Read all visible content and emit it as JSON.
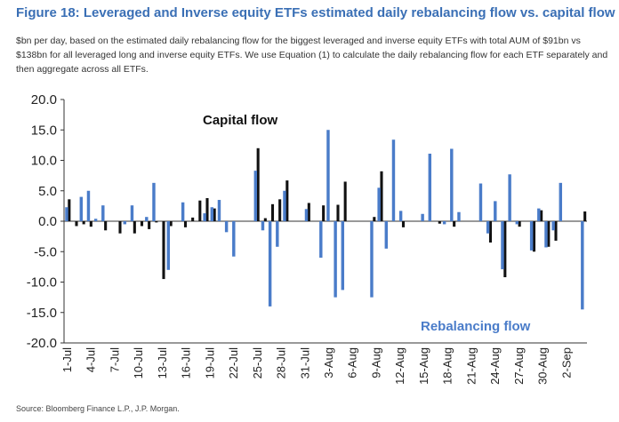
{
  "figure": {
    "title": "Figure 18: Leveraged and Inverse equity ETFs estimated daily rebalancing flow vs. capital flow",
    "description": "$bn per day, based on the estimated daily rebalancing flow for the biggest leveraged and inverse equity ETFs with total AUM of $91bn vs $138bn for all leveraged long and inverse equity ETFs. We use Equation (1) to calculate the daily rebalancing flow for each ETF separately and then aggregate across all ETFs.",
    "source": "Source: Bloomberg Finance L.P., J.P. Morgan."
  },
  "colors": {
    "rebalancing": "#4a7cc9",
    "capital": "#111111",
    "title": "#3a6fb5",
    "axis": "#333333"
  },
  "chart_data": {
    "type": "bar",
    "title": "",
    "xlabel": "",
    "ylabel": "",
    "ylim": [
      -20,
      20
    ],
    "yticks": [
      "20.0",
      "15.0",
      "10.0",
      "5.0",
      "0.0",
      "-5.0",
      "-10.0",
      "-15.0",
      "-20.0"
    ],
    "ytick_values": [
      20,
      15,
      10,
      5,
      0,
      -5,
      -10,
      -15,
      -20
    ],
    "xtick_labels": [
      "1-Jul",
      "4-Jul",
      "7-Jul",
      "10-Jul",
      "13-Jul",
      "16-Jul",
      "19-Jul",
      "22-Jul",
      "25-Jul",
      "28-Jul",
      "31-Jul",
      "3-Aug",
      "6-Aug",
      "9-Aug",
      "12-Aug",
      "15-Aug",
      "18-Aug",
      "21-Aug",
      "24-Aug",
      "27-Aug",
      "30-Aug",
      "2-Sep"
    ],
    "day_count": 65,
    "series": [
      {
        "name": "Rebalancing flow",
        "values": [
          2.3,
          0,
          4,
          5,
          0.4,
          2.6,
          0,
          0,
          -0.5,
          2.6,
          0,
          0.7,
          6.3,
          0,
          -8,
          0,
          3.1,
          0,
          0,
          1.3,
          2.3,
          3.5,
          -1.8,
          -5.8,
          0,
          0,
          8.3,
          -1.5,
          -14,
          -4.2,
          5,
          0,
          0,
          2,
          0,
          -6,
          15,
          -12.5,
          -11.3,
          0,
          0,
          0,
          -12.5,
          5.5,
          -4.5,
          13.4,
          1.7,
          0,
          0,
          1.2,
          11.1,
          0,
          -0.5,
          11.9,
          1.5,
          0,
          0,
          6.2,
          -2,
          3.3,
          -7.9,
          7.7,
          -0.5,
          0,
          -4.8,
          2.1,
          -4.3,
          -1.5,
          6.3,
          0,
          0,
          -14.5
        ],
        "axis_labels_note": "axis shows 72 slots; values indexed by slot"
      },
      {
        "name": "Capital flow",
        "values": [
          3.6,
          -0.8,
          -0.5,
          -0.9,
          0,
          -1.5,
          0,
          -2,
          0,
          -2,
          -0.8,
          -1.3,
          -0.2,
          -9.5,
          -0.8,
          0,
          -1,
          0.6,
          3.4,
          3.8,
          2.1,
          0,
          0,
          0,
          0,
          0,
          12,
          0.5,
          2.8,
          3.6,
          6.7,
          0,
          0,
          3,
          0,
          2.6,
          0,
          2.7,
          6.5,
          0,
          0,
          0,
          0.7,
          8.2,
          0,
          0,
          -1,
          0,
          0,
          0,
          0,
          -0.4,
          0,
          -0.9,
          0,
          0,
          0,
          0,
          -3.5,
          0,
          -9.2,
          0,
          -0.9,
          0,
          -5,
          1.8,
          -4.2,
          -3.2,
          0,
          0,
          0,
          1.6
        ]
      }
    ],
    "annotations": {
      "capital_label": "Capital flow",
      "rebalancing_label": "Rebalancing flow"
    }
  }
}
